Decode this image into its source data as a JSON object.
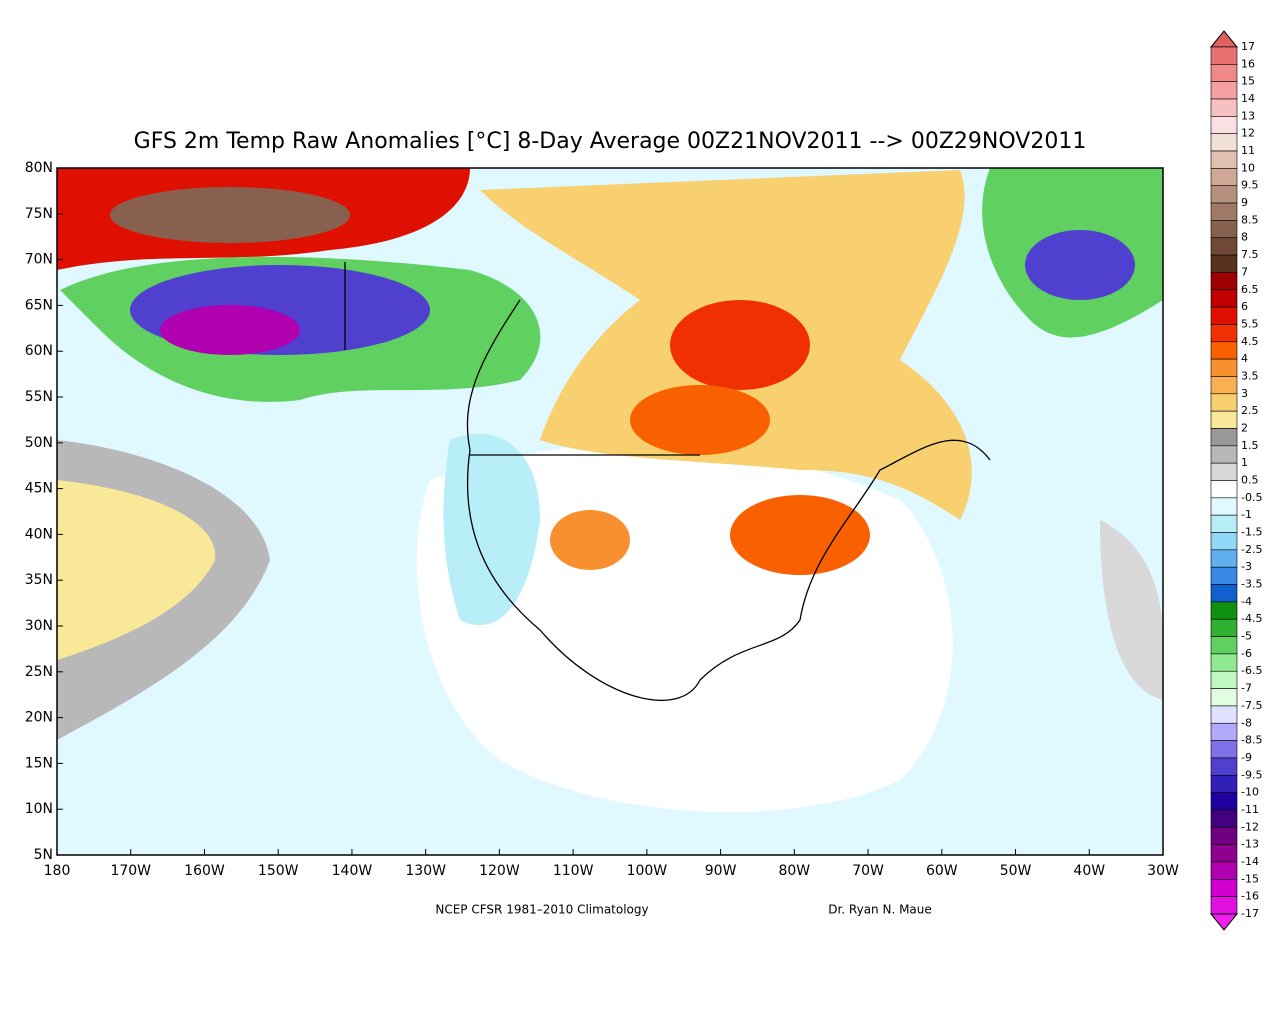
{
  "chart_data": {
    "type": "map",
    "title": "GFS 2m Temp Raw Anomalies [°C] 8-Day Average 00Z21NOV2011 --> 00Z29NOV2011",
    "footer_left": "NCEP CFSR 1981–2010 Climatology",
    "footer_right": "Dr. Ryan N. Maue",
    "xlim": [
      -180,
      -30
    ],
    "ylim": [
      5,
      80
    ],
    "xticks": [
      {
        "value": -180,
        "label": "180"
      },
      {
        "value": -170,
        "label": "170W"
      },
      {
        "value": -160,
        "label": "160W"
      },
      {
        "value": -150,
        "label": "150W"
      },
      {
        "value": -140,
        "label": "140W"
      },
      {
        "value": -130,
        "label": "130W"
      },
      {
        "value": -120,
        "label": "120W"
      },
      {
        "value": -110,
        "label": "110W"
      },
      {
        "value": -100,
        "label": "100W"
      },
      {
        "value": -90,
        "label": "90W"
      },
      {
        "value": -80,
        "label": "80W"
      },
      {
        "value": -70,
        "label": "70W"
      },
      {
        "value": -60,
        "label": "60W"
      },
      {
        "value": -50,
        "label": "50W"
      },
      {
        "value": -40,
        "label": "40W"
      },
      {
        "value": -30,
        "label": "30W"
      }
    ],
    "yticks": [
      {
        "value": 5,
        "label": "5N"
      },
      {
        "value": 10,
        "label": "10N"
      },
      {
        "value": 15,
        "label": "15N"
      },
      {
        "value": 20,
        "label": "20N"
      },
      {
        "value": 25,
        "label": "25N"
      },
      {
        "value": 30,
        "label": "30N"
      },
      {
        "value": 35,
        "label": "35N"
      },
      {
        "value": 40,
        "label": "40N"
      },
      {
        "value": 45,
        "label": "45N"
      },
      {
        "value": 50,
        "label": "50N"
      },
      {
        "value": 55,
        "label": "55N"
      },
      {
        "value": 60,
        "label": "60N"
      },
      {
        "value": 65,
        "label": "65N"
      },
      {
        "value": 70,
        "label": "70N"
      },
      {
        "value": 75,
        "label": "75N"
      },
      {
        "value": 80,
        "label": "80N"
      }
    ],
    "colorbar": {
      "levels": [
        17,
        16,
        15,
        14,
        13,
        12,
        11,
        10,
        9.5,
        9,
        8.5,
        8,
        7.5,
        7,
        6.5,
        6,
        5.5,
        4.5,
        4,
        3.5,
        3,
        2.5,
        2,
        1.5,
        1,
        0.5,
        -0.5,
        -1,
        -1.5,
        -2.5,
        -3,
        -3.5,
        -4,
        -4.5,
        -5,
        -6,
        -6.5,
        -7,
        -7.5,
        -8,
        -8.5,
        -9,
        -9.5,
        -10,
        -11,
        -12,
        -13,
        -14,
        -15,
        -16,
        -17
      ],
      "colors": [
        "#e06060",
        "#e87070",
        "#f08888",
        "#f4a0a0",
        "#f8c0c0",
        "#fae0e0",
        "#f0e0d8",
        "#e0c0b0",
        "#d0a898",
        "#b89080",
        "#a07868",
        "#886050",
        "#704838",
        "#583020",
        "#a00000",
        "#c00000",
        "#e01000",
        "#f03000",
        "#f86000",
        "#f89030",
        "#f8b050",
        "#f8d070",
        "#f8e898",
        "#989898",
        "#b8b8b8",
        "#d8d8d8",
        "#ffffff",
        "#e0f8ff",
        "#b8eef8",
        "#90d8f8",
        "#60b0f0",
        "#3888e8",
        "#1060d0",
        "#109010",
        "#30b030",
        "#60d060",
        "#90e890",
        "#c0f8c0",
        "#e0ffe0",
        "#e0e0ff",
        "#b0a8f8",
        "#8070e8",
        "#5040d0",
        "#3020b8",
        "#2000a0",
        "#400080",
        "#700080",
        "#900090",
        "#b000b0",
        "#d000d0",
        "#e010e0",
        "#f020f0"
      ]
    }
  }
}
